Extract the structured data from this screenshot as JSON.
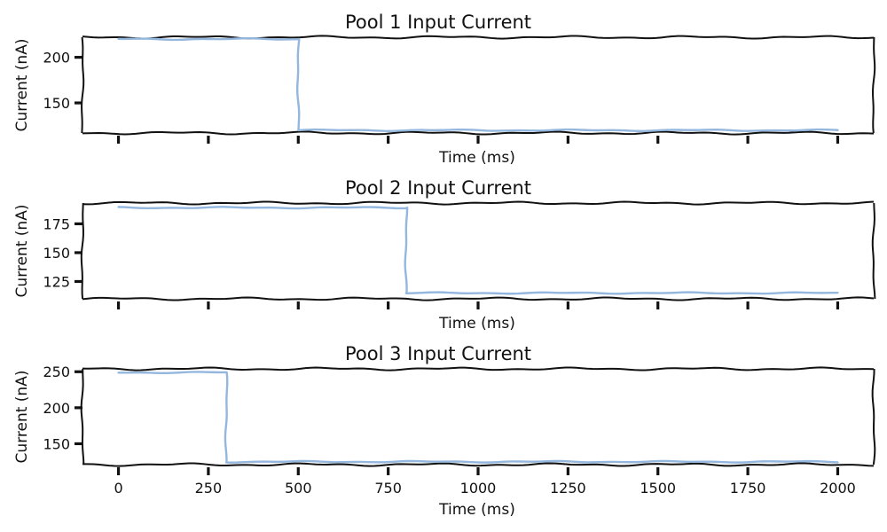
{
  "chart_data": [
    {
      "type": "line",
      "title": "Pool 1 Input Current",
      "xlabel": "Time (ms)",
      "ylabel": "Current (nA)",
      "xlim": [
        -100,
        2100
      ],
      "ylim": [
        117,
        222
      ],
      "xticks": [
        0,
        250,
        500,
        750,
        1000,
        1250,
        1500,
        1750,
        2000
      ],
      "show_xtick_labels": false,
      "yticks": [
        150,
        200
      ],
      "grid": false,
      "series": [
        {
          "color": "#93b7de",
          "x": [
            0,
            500,
            500,
            2000
          ],
          "y": [
            220,
            220,
            120,
            120
          ]
        }
      ]
    },
    {
      "type": "line",
      "title": "Pool 2 Input Current",
      "xlabel": "Time (ms)",
      "ylabel": "Current (nA)",
      "xlim": [
        -100,
        2100
      ],
      "ylim": [
        110,
        193
      ],
      "xticks": [
        0,
        250,
        500,
        750,
        1000,
        1250,
        1500,
        1750,
        2000
      ],
      "show_xtick_labels": false,
      "yticks": [
        125,
        150,
        175
      ],
      "grid": false,
      "series": [
        {
          "color": "#93b7de",
          "x": [
            0,
            800,
            800,
            2000
          ],
          "y": [
            189,
            189,
            115,
            115
          ]
        }
      ]
    },
    {
      "type": "line",
      "title": "Pool 3 Input Current",
      "xlabel": "Time (ms)",
      "ylabel": "Current (nA)",
      "xlim": [
        -100,
        2100
      ],
      "ylim": [
        121,
        254
      ],
      "xticks": [
        0,
        250,
        500,
        750,
        1000,
        1250,
        1500,
        1750,
        2000
      ],
      "show_xtick_labels": true,
      "yticks": [
        150,
        200,
        250
      ],
      "grid": false,
      "series": [
        {
          "color": "#93b7de",
          "x": [
            0,
            300,
            300,
            2000
          ],
          "y": [
            249,
            249,
            125,
            125
          ]
        }
      ]
    }
  ]
}
